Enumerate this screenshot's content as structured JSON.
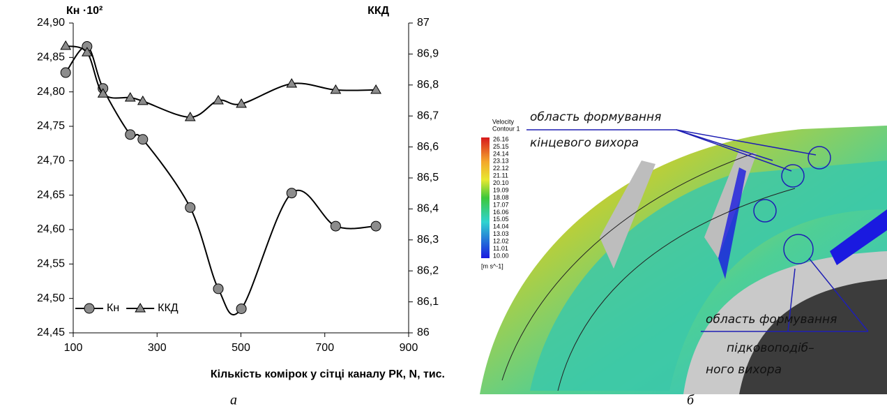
{
  "chart_data": {
    "type": "line",
    "x_label": "Кількість комірок у сітці каналу РК, N, тис.",
    "y_label": "Кн ·10²",
    "y2_label": "ККД",
    "x": [
      82,
      133,
      171,
      236,
      266,
      379,
      446,
      501,
      621,
      726,
      822
    ],
    "series": [
      {
        "name": "Кн",
        "color": "#000000",
        "marker": "circle",
        "marker_color": "#8c8c8c",
        "values": [
          24.828,
          24.866,
          24.805,
          24.738,
          24.731,
          24.632,
          24.514,
          24.485,
          24.653,
          24.605,
          24.605
        ]
      },
      {
        "name": "ККД",
        "color": "#000000",
        "marker": "triangle",
        "marker_color": "#8c8c8c",
        "axis": "y2",
        "values": [
          86.926,
          86.905,
          86.772,
          86.759,
          86.748,
          86.696,
          86.75,
          86.739,
          86.804,
          86.784,
          86.784
        ]
      }
    ],
    "xlim": [
      100,
      900
    ],
    "xticks": [
      100,
      300,
      500,
      700,
      900
    ],
    "ylim": [
      24.45,
      24.9
    ],
    "yticks": [
      {
        "value": 24.45,
        "label": "24,45"
      },
      {
        "value": 24.5,
        "label": "24,50"
      },
      {
        "value": 24.55,
        "label": "24,55"
      },
      {
        "value": 24.6,
        "label": "24,60"
      },
      {
        "value": 24.65,
        "label": "24,65"
      },
      {
        "value": 24.7,
        "label": "24,70"
      },
      {
        "value": 24.75,
        "label": "24,75"
      },
      {
        "value": 24.8,
        "label": "24,80"
      },
      {
        "value": 24.85,
        "label": "24,85"
      },
      {
        "value": 24.9,
        "label": "24,90"
      }
    ],
    "y2lim": [
      86,
      87
    ],
    "y2ticks": [
      86,
      {
        "value": 86.1,
        "label": "86,1"
      },
      {
        "value": 86.2,
        "label": "86,2"
      },
      {
        "value": 86.3,
        "label": "86,3"
      },
      {
        "value": 86.4,
        "label": "86,4"
      },
      {
        "value": 86.5,
        "label": "86,5"
      },
      {
        "value": 86.6,
        "label": "86,6"
      },
      {
        "value": 86.7,
        "label": "86,7"
      },
      {
        "value": 86.8,
        "label": "86,8"
      },
      {
        "value": 86.9,
        "label": "86,9"
      },
      87
    ],
    "legend": "lower-left",
    "grid": false,
    "caption": "а"
  },
  "figure": {
    "colorbar_title": [
      "Velocity",
      "Contour 1"
    ],
    "colorbar_labels": [
      "26.16",
      "25.15",
      "24.14",
      "23.13",
      "22.12",
      "21.11",
      "20.10",
      "19.09",
      "18.08",
      "17.07",
      "16.06",
      "15.05",
      "14.04",
      "13.03",
      "12.02",
      "11.01",
      "10.00"
    ],
    "colorbar_unit": "[m s^-1]",
    "annotation_top": [
      "область формування",
      "кінцевого вихора"
    ],
    "annotation_bottom": [
      "область формування",
      "підковоподіб–",
      "ного вихора"
    ],
    "caption": "б"
  }
}
